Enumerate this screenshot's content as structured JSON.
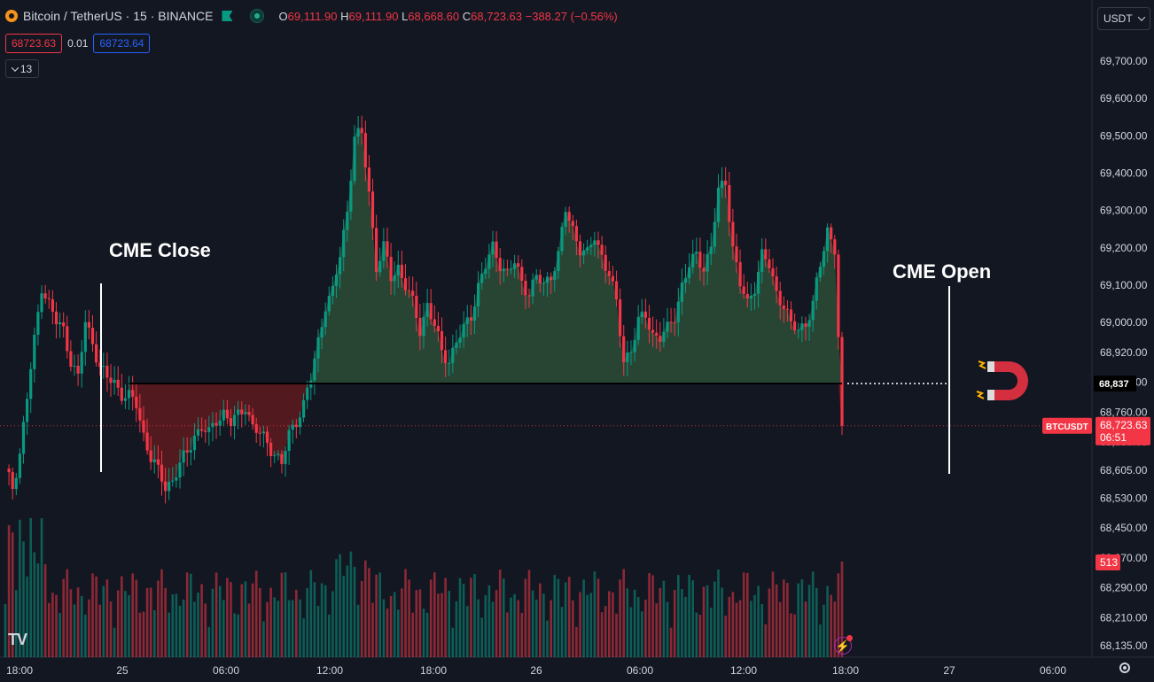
{
  "header": {
    "symbol": "Bitcoin / TetherUS · 15 · BINANCE",
    "ohlc": {
      "o_label": "O",
      "o_value": "69,111.90",
      "h_label": "H",
      "h_value": "69,111.90",
      "l_label": "L",
      "l_value": "68,668.60",
      "c_label": "C",
      "c_value": "68,723.63",
      "change": "−388.27 (−0.56%)"
    },
    "sell_price": "68723.63",
    "spread": "0.01",
    "buy_price": "68723.64",
    "indicator_count": "13",
    "currency": "USDT"
  },
  "colors": {
    "background": "#131722",
    "up": "#089981",
    "down": "#f23645",
    "fill_above": "#2b4a36",
    "fill_below": "#5a1a1f",
    "axis_text": "#d1d4dc",
    "price_line": "#f23645"
  },
  "annotations": {
    "cme_close": "CME Close",
    "cme_open": "CME Open",
    "magnet_icon": "magnet-icon"
  },
  "price_labels": {
    "level_label": "68,837",
    "ticker_label": "BTCUSDT",
    "current_price": "68,723.63",
    "countdown": "06:51",
    "volume_label": "513"
  },
  "icons": {
    "logo": "tradingview-logo-icon",
    "settings": "gear-icon",
    "alert": "lightning-icon"
  },
  "chart_data": {
    "type": "candlestick",
    "timeframe": "15",
    "y_axis": {
      "ticks": [
        "69,700.00",
        "69,600.00",
        "69,500.00",
        "69,400.00",
        "69,300.00",
        "69,200.00",
        "69,100.00",
        "69,000.00",
        "68,920.00",
        "68,840.00",
        "68,760.00",
        "68,680.00",
        "68,605.00",
        "68,530.00",
        "68,450.00",
        "68,370.00",
        "68,290.00",
        "68,210.00",
        "68,135.00"
      ],
      "tick_values": [
        69700,
        69600,
        69500,
        69400,
        69300,
        69200,
        69100,
        69000,
        68920,
        68840,
        68760,
        68680,
        68605,
        68530,
        68450,
        68370,
        68290,
        68210,
        68135
      ],
      "range": [
        68135,
        69700
      ]
    },
    "x_axis": {
      "ticks": [
        "18:00",
        "25",
        "06:00",
        "12:00",
        "18:00",
        "26",
        "06:00",
        "12:00",
        "18:00",
        "27",
        "06:00"
      ]
    },
    "levels": {
      "cme_gap_level": 68837,
      "current_price": 68723.63
    },
    "anchor_points": [
      [
        0,
        68600
      ],
      [
        2,
        68560
      ],
      [
        4,
        68650
      ],
      [
        6,
        68800
      ],
      [
        8,
        68950
      ],
      [
        10,
        69100
      ],
      [
        12,
        69050
      ],
      [
        14,
        69000
      ],
      [
        16,
        68980
      ],
      [
        18,
        68900
      ],
      [
        20,
        68850
      ],
      [
        22,
        69000
      ],
      [
        24,
        68950
      ],
      [
        26,
        68880
      ],
      [
        28,
        68850
      ],
      [
        30,
        68840
      ],
      [
        32,
        68810
      ],
      [
        34,
        68800
      ],
      [
        36,
        68780
      ],
      [
        38,
        68700
      ],
      [
        40,
        68640
      ],
      [
        42,
        68600
      ],
      [
        44,
        68560
      ],
      [
        46,
        68580
      ],
      [
        48,
        68620
      ],
      [
        50,
        68650
      ],
      [
        52,
        68700
      ],
      [
        54,
        68720
      ],
      [
        56,
        68700
      ],
      [
        58,
        68740
      ],
      [
        60,
        68760
      ],
      [
        62,
        68730
      ],
      [
        64,
        68750
      ],
      [
        66,
        68780
      ],
      [
        68,
        68720
      ],
      [
        70,
        68700
      ],
      [
        72,
        68680
      ],
      [
        74,
        68650
      ],
      [
        76,
        68620
      ],
      [
        78,
        68700
      ],
      [
        80,
        68740
      ],
      [
        82,
        68780
      ],
      [
        84,
        68850
      ],
      [
        86,
        68950
      ],
      [
        88,
        69050
      ],
      [
        90,
        69080
      ],
      [
        92,
        69180
      ],
      [
        94,
        69300
      ],
      [
        96,
        69500
      ],
      [
        98,
        69500
      ],
      [
        100,
        69350
      ],
      [
        102,
        69150
      ],
      [
        104,
        69200
      ],
      [
        106,
        69120
      ],
      [
        108,
        69150
      ],
      [
        110,
        69100
      ],
      [
        112,
        69050
      ],
      [
        114,
        68980
      ],
      [
        116,
        69050
      ],
      [
        118,
        68990
      ],
      [
        120,
        68920
      ],
      [
        122,
        68900
      ],
      [
        124,
        68950
      ],
      [
        126,
        68980
      ],
      [
        128,
        69020
      ],
      [
        130,
        69100
      ],
      [
        132,
        69150
      ],
      [
        134,
        69200
      ],
      [
        136,
        69160
      ],
      [
        138,
        69130
      ],
      [
        140,
        69160
      ],
      [
        142,
        69110
      ],
      [
        144,
        69080
      ],
      [
        146,
        69120
      ],
      [
        148,
        69100
      ],
      [
        150,
        69130
      ],
      [
        152,
        69180
      ],
      [
        154,
        69300
      ],
      [
        156,
        69250
      ],
      [
        158,
        69200
      ],
      [
        160,
        69180
      ],
      [
        162,
        69230
      ],
      [
        164,
        69180
      ],
      [
        166,
        69130
      ],
      [
        168,
        69050
      ],
      [
        170,
        68900
      ],
      [
        172,
        68930
      ],
      [
        174,
        69000
      ],
      [
        176,
        69020
      ],
      [
        178,
        68970
      ],
      [
        180,
        68960
      ],
      [
        182,
        68980
      ],
      [
        184,
        69020
      ],
      [
        186,
        69100
      ],
      [
        188,
        69150
      ],
      [
        190,
        69180
      ],
      [
        192,
        69150
      ],
      [
        194,
        69200
      ],
      [
        196,
        69350
      ],
      [
        198,
        69380
      ],
      [
        200,
        69200
      ],
      [
        202,
        69100
      ],
      [
        204,
        69050
      ],
      [
        206,
        69100
      ],
      [
        208,
        69180
      ],
      [
        210,
        69150
      ],
      [
        212,
        69080
      ],
      [
        214,
        69050
      ],
      [
        216,
        68990
      ],
      [
        218,
        68980
      ],
      [
        220,
        69000
      ],
      [
        222,
        69050
      ],
      [
        224,
        69150
      ],
      [
        226,
        69250
      ],
      [
        228,
        69200
      ],
      [
        230,
        68723.63
      ]
    ],
    "x_domain": [
      0,
      230
    ],
    "y_domain": [
      68135,
      69700
    ]
  }
}
